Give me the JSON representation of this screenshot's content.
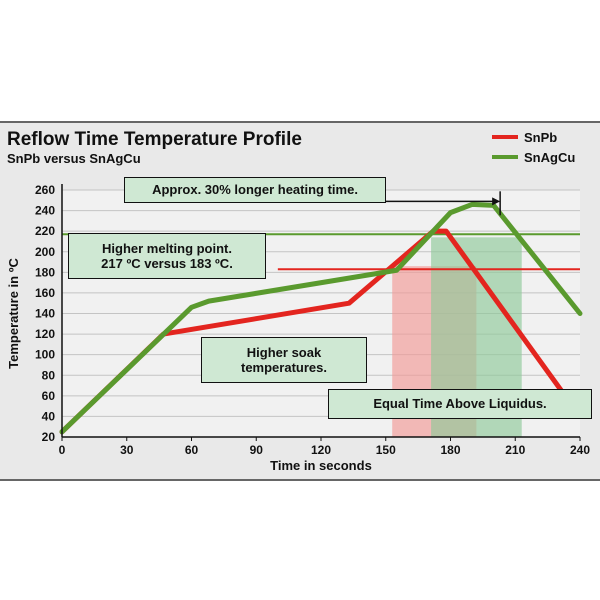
{
  "chart_data": {
    "type": "line",
    "title": "Reflow Time Temperature Profile",
    "subtitle": "SnPb versus SnAgCu",
    "xlabel": "Time in seconds",
    "ylabel": "Temperature in ºC",
    "xlim": [
      0,
      240
    ],
    "ylim": [
      20,
      260
    ],
    "x_ticks": [
      0,
      30,
      60,
      90,
      120,
      150,
      180,
      210,
      240
    ],
    "y_ticks": [
      20,
      40,
      60,
      80,
      100,
      120,
      140,
      160,
      180,
      200,
      220,
      240,
      260
    ],
    "grid": true,
    "legend_position": "top-right",
    "series": [
      {
        "name": "SnPb",
        "color": "#e3251f",
        "x": [
          0,
          47,
          133,
          172,
          178,
          240
        ],
        "y": [
          25,
          120,
          150,
          220,
          220,
          40
        ]
      },
      {
        "name": "SnAgCu",
        "color": "#5a9a2e",
        "x": [
          0,
          60,
          68,
          155,
          180,
          190,
          200,
          240
        ],
        "y": [
          25,
          146,
          152,
          182,
          238,
          246,
          245,
          140
        ]
      }
    ],
    "reference_lines": [
      {
        "y": 183,
        "x_start": 100,
        "x_end": 240,
        "color": "#e3251f"
      },
      {
        "y": 217,
        "x_start": 0,
        "x_end": 240,
        "color": "#5a9a2e"
      }
    ],
    "shaded_regions": [
      {
        "x_start": 153,
        "x_end": 192,
        "y_top": 186,
        "color": "#f29a96"
      },
      {
        "x_start": 171,
        "x_end": 213,
        "y_top": 214,
        "color": "#8fc99a"
      }
    ],
    "annotations": {
      "heating_time": "Approx. 30% longer heating time.",
      "melting_point_line1": "Higher melting point.",
      "melting_point_line2": "217 ºC versus 183 ºC.",
      "soak_line1": "Higher soak",
      "soak_line2": "temperatures.",
      "liquidus": "Equal Time Above Liquidus."
    },
    "heating_arrow": {
      "x_end": 203,
      "y": 249
    }
  }
}
